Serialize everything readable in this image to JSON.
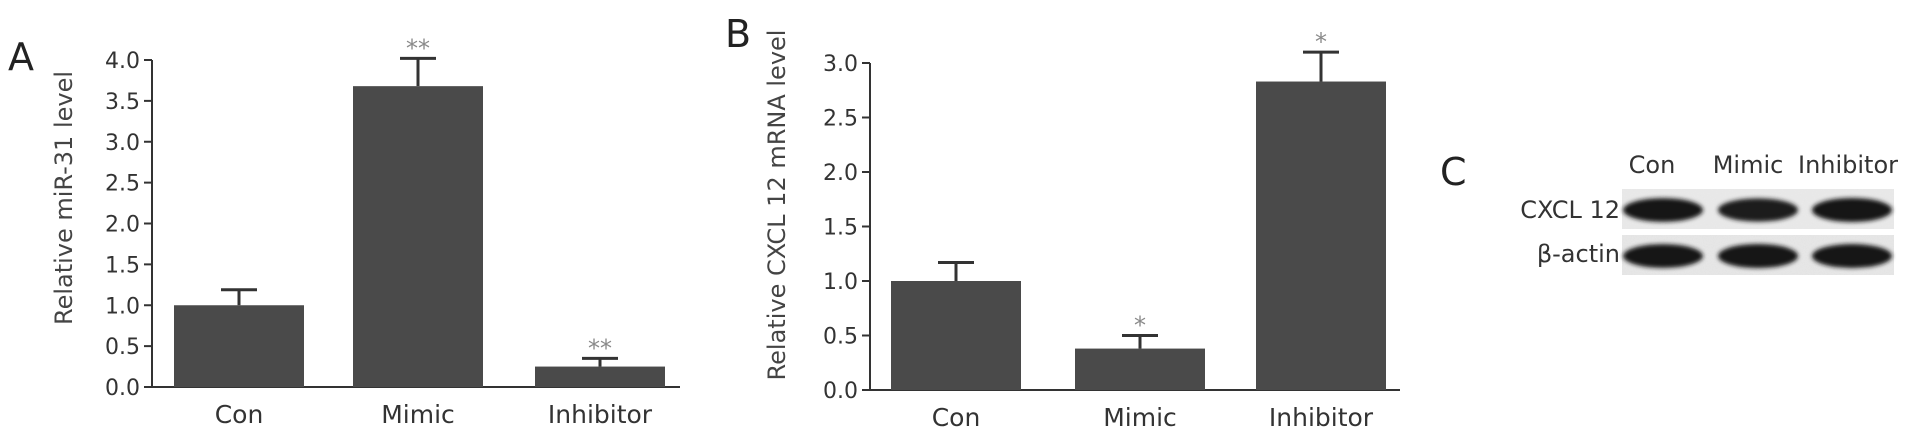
{
  "chart_data": [
    {
      "panel": "A",
      "type": "bar",
      "categories": [
        "Con",
        "Mimic",
        "Inhibitor"
      ],
      "values": [
        1.0,
        3.68,
        0.25
      ],
      "errors": [
        0.19,
        0.34,
        0.1
      ],
      "significance": [
        "",
        "**",
        "**"
      ],
      "ylabel": "Relative miR-31 level",
      "xlabel": "",
      "ylim": [
        0,
        4.0
      ],
      "yticks": [
        "0.0",
        "0.5",
        "1.0",
        "1.5",
        "2.0",
        "2.5",
        "3.0",
        "3.5",
        "4.0"
      ],
      "bar_color": "#4a4a4a",
      "grid": false
    },
    {
      "panel": "B",
      "type": "bar",
      "categories": [
        "Con",
        "Mimic",
        "Inhibitor"
      ],
      "values": [
        1.0,
        0.38,
        2.83
      ],
      "errors": [
        0.17,
        0.12,
        0.27
      ],
      "significance": [
        "",
        "*",
        "*"
      ],
      "ylabel": "Relative CXCL 12 mRNA level",
      "xlabel": "",
      "ylim": [
        0,
        3.0
      ],
      "yticks": [
        "0.0",
        "0.5",
        "1.0",
        "1.5",
        "2.0",
        "2.5",
        "3.0"
      ],
      "bar_color": "#4a4a4a",
      "grid": false
    }
  ],
  "blot": {
    "panel": "C",
    "columns": [
      "Con",
      "Mimic",
      "Inhibitor"
    ],
    "rows": [
      {
        "label": "CXCL 12",
        "intensity": [
          0.92,
          0.82,
          1.0
        ]
      },
      {
        "label": "β-actin",
        "intensity": [
          0.95,
          1.0,
          0.97
        ]
      }
    ]
  }
}
